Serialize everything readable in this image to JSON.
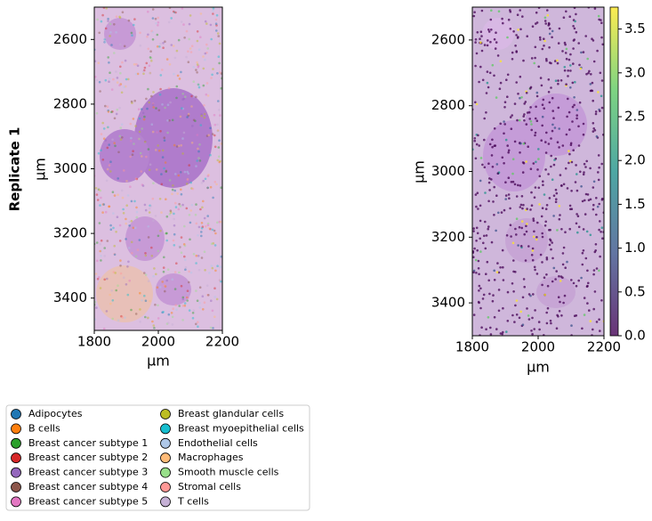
{
  "chart_data": [
    {
      "type": "image",
      "row_label": "Replicate 1",
      "xlabel": "µm",
      "ylabel": "µm",
      "xlim": [
        1800,
        2200
      ],
      "ylim": [
        3500,
        2500
      ],
      "xticks": [
        1800,
        2000,
        2200
      ],
      "yticks": [
        2600,
        2800,
        3000,
        3200,
        3400
      ],
      "legend": [
        {
          "name": "Adipocytes",
          "color": "#1f77b4"
        },
        {
          "name": "B cells",
          "color": "#ff7f0e"
        },
        {
          "name": "Breast cancer subtype 1",
          "color": "#2ca02c"
        },
        {
          "name": "Breast cancer subtype 2",
          "color": "#d62728"
        },
        {
          "name": "Breast cancer subtype 3",
          "color": "#9467bd"
        },
        {
          "name": "Breast cancer subtype 4",
          "color": "#8c564b"
        },
        {
          "name": "Breast cancer subtype 5",
          "color": "#e377c2"
        },
        {
          "name": "Breast glandular cells",
          "color": "#bcbd22"
        },
        {
          "name": "Breast myoepithelial cells",
          "color": "#17becf"
        },
        {
          "name": "Endothelial cells",
          "color": "#aec7e8"
        },
        {
          "name": "Macrophages",
          "color": "#ffbb78"
        },
        {
          "name": "Smooth muscle cells",
          "color": "#98df8a"
        },
        {
          "name": "Stromal cells",
          "color": "#ff9896"
        },
        {
          "name": "T cells",
          "color": "#c5b0d5"
        }
      ]
    },
    {
      "type": "image",
      "xlabel": "µm",
      "ylabel": "µm",
      "xlim": [
        1800,
        2200
      ],
      "ylim": [
        3500,
        2500
      ],
      "xticks": [
        1800,
        2000,
        2200
      ],
      "yticks": [
        2600,
        2800,
        3000,
        3200,
        3400
      ],
      "colorbar": {
        "colormap": [
          "#440154",
          "#3b528b",
          "#21918c",
          "#5ec962",
          "#fde725"
        ],
        "ylim": [
          0,
          3.75
        ],
        "yticks": [
          {
            "value": 0,
            "label": "0.0"
          },
          {
            "value": 0.5,
            "label": "0.5"
          },
          {
            "value": 1,
            "label": "1.0"
          },
          {
            "value": 1.5,
            "label": "1.5"
          },
          {
            "value": 2,
            "label": "2.0"
          },
          {
            "value": 2.5,
            "label": "2.5"
          },
          {
            "value": 3,
            "label": "3.0"
          },
          {
            "value": 3.5,
            "label": "3.5"
          }
        ]
      }
    }
  ]
}
